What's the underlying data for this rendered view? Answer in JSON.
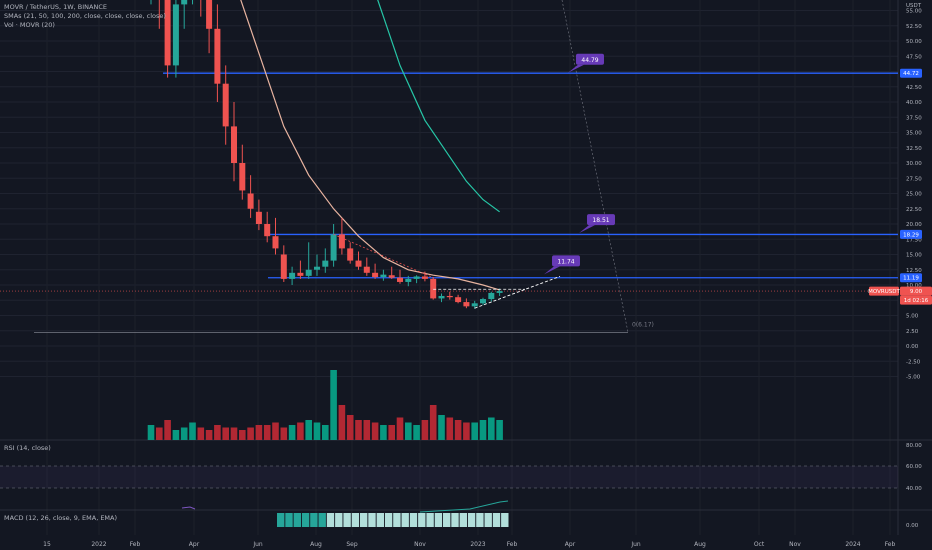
{
  "header": {
    "symbol_line": "MOVR / TetherUS, 1W, BINANCE",
    "sma_line": "SMAs (21, 50, 100, 200, close, close, close, close)",
    "vol_line": "Vol · MOVR (20)"
  },
  "rsi_pane": {
    "label": "RSI (14, close)",
    "ticks": [
      "80.00",
      "60.00",
      "40.00"
    ]
  },
  "macd_pane": {
    "label": "MACD (12, 26, close, 9, EMA, EMA)",
    "ticks": [
      "0.00"
    ]
  },
  "price_axis": {
    "currency": "USDT",
    "ticks": [
      "65.00",
      "62.50",
      "60.00",
      "57.50",
      "55.00",
      "52.50",
      "50.00",
      "47.50",
      "45.00",
      "42.50",
      "40.00",
      "37.50",
      "35.00",
      "32.50",
      "30.00",
      "27.50",
      "25.00",
      "22.50",
      "20.00",
      "17.50",
      "15.00",
      "12.50",
      "10.00",
      "7.50",
      "5.00",
      "2.50",
      "0.00",
      "-2.50",
      "-5.00"
    ]
  },
  "time_axis": {
    "labels": [
      "15",
      "2022",
      "Feb",
      "Apr",
      "Jun",
      "Aug",
      "Sep",
      "Nov",
      "2023",
      "Feb",
      "Apr",
      "Jun",
      "Aug",
      "Oct",
      "Nov",
      "2024",
      "Feb"
    ]
  },
  "badges": {
    "symbol": "MOVRUSDT",
    "last_price": "9.00",
    "countdown": "1d 02:16",
    "level_high": "44.72",
    "level_mid": "18.29",
    "level_low": "11.19"
  },
  "targets": {
    "t1": "44.79",
    "t2": "18.51",
    "t3": "11.74"
  },
  "fib_label": "0(6.17)",
  "colors": {
    "background": "#131722",
    "up": "#26a69a",
    "down": "#ef5350",
    "vol_up": "#089981",
    "vol_down": "#b22833",
    "level_line": "#2962ff",
    "sma21": "#e8b4a0",
    "sma50": "#26c6a6",
    "target_box": "#673ab7",
    "rsi_band": "#7e57c2",
    "macd_hist": "#b2dfdb"
  },
  "chart_data": {
    "type": "candlestick",
    "timeframe": "1W",
    "ylim": [
      -6,
      66
    ],
    "candles": [
      [
        60,
        66,
        56,
        60
      ],
      [
        60,
        66,
        52,
        58
      ],
      [
        57,
        62,
        44,
        46
      ],
      [
        46,
        58,
        44,
        56
      ],
      [
        56,
        66,
        52,
        64
      ],
      [
        64,
        66,
        56,
        64
      ],
      [
        63,
        66,
        54,
        58
      ],
      [
        58,
        62,
        48,
        52
      ],
      [
        52,
        56,
        40,
        43
      ],
      [
        43,
        46,
        33,
        36
      ],
      [
        36,
        40,
        27,
        30
      ],
      [
        30,
        33,
        24,
        25.5
      ],
      [
        25,
        28,
        21,
        22.5
      ],
      [
        22,
        24,
        19,
        20
      ],
      [
        20,
        22,
        17,
        18
      ],
      [
        18,
        21,
        15,
        16
      ],
      [
        15,
        16.5,
        10.5,
        11
      ],
      [
        11,
        13,
        10,
        12
      ],
      [
        12,
        14,
        11,
        11.5
      ],
      [
        11.5,
        17,
        11,
        12.5
      ],
      [
        12.5,
        15,
        11.5,
        13
      ],
      [
        13,
        16,
        12,
        14
      ],
      [
        14,
        20,
        13,
        18.3
      ],
      [
        18.3,
        21,
        15,
        16
      ],
      [
        16,
        17,
        13.5,
        14
      ],
      [
        14,
        15.5,
        12.5,
        13
      ],
      [
        13,
        14.5,
        11.5,
        12
      ],
      [
        12,
        13.5,
        11,
        11.3
      ],
      [
        11.3,
        12.5,
        10.7,
        11.7
      ],
      [
        11.6,
        13,
        11,
        11.2
      ],
      [
        11.2,
        12.5,
        10.2,
        10.5
      ],
      [
        10.5,
        11.5,
        9.8,
        11
      ],
      [
        11,
        11.6,
        10.3,
        11.4
      ],
      [
        11.4,
        12.2,
        10.6,
        11
      ],
      [
        11,
        11.3,
        7.6,
        7.8
      ],
      [
        7.8,
        8.6,
        7.2,
        8.2
      ],
      [
        8.2,
        8.9,
        7.6,
        8
      ],
      [
        8,
        8.4,
        7.0,
        7.2
      ],
      [
        7.2,
        7.8,
        6.2,
        6.5
      ],
      [
        6.5,
        7.4,
        6.1,
        7.0
      ],
      [
        7.0,
        7.9,
        6.7,
        7.7
      ],
      [
        7.7,
        8.9,
        7.3,
        8.7
      ],
      [
        8.7,
        9.4,
        8.2,
        9.0
      ]
    ],
    "volume": [
      6,
      5,
      8,
      4,
      5,
      7,
      5,
      4,
      6,
      5,
      5,
      4,
      5,
      6,
      6,
      7,
      5,
      6,
      7,
      8,
      7,
      6,
      28,
      14,
      10,
      8,
      8,
      7,
      6,
      6,
      9,
      7,
      6,
      8,
      14,
      10,
      9,
      8,
      7,
      7,
      8,
      9,
      8
    ],
    "sma21": [
      [
        5,
        84.0
      ],
      [
        10,
        60.0
      ],
      [
        13,
        48.0
      ],
      [
        16,
        36.0
      ],
      [
        19,
        28.0
      ],
      [
        22,
        22.5
      ],
      [
        25,
        18.0
      ],
      [
        28,
        14.5
      ],
      [
        31,
        12.5
      ],
      [
        34,
        11.6
      ],
      [
        37,
        11.0
      ],
      [
        40,
        10.0
      ],
      [
        42,
        9.2
      ]
    ],
    "sma50": [
      [
        24,
        66.0
      ],
      [
        27,
        58.0
      ],
      [
        30,
        46.0
      ],
      [
        33,
        37.0
      ],
      [
        36,
        31.0
      ],
      [
        38,
        27.0
      ],
      [
        40,
        24.0
      ],
      [
        42,
        22.0
      ]
    ],
    "levels": [
      44.72,
      18.29,
      11.19
    ],
    "targets": [
      44.79,
      18.51,
      11.74
    ],
    "fib_zero": 6.17,
    "last_price": 9.0
  }
}
